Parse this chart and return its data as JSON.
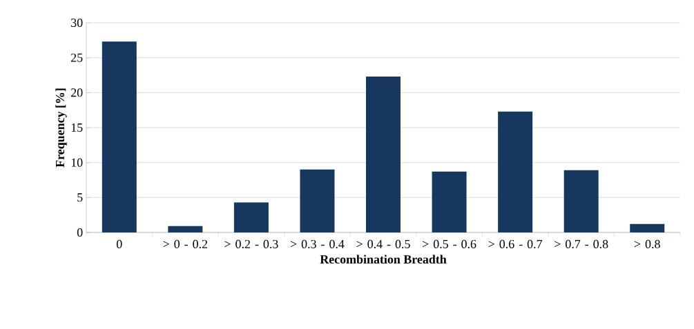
{
  "chart_data": {
    "type": "bar",
    "xlabel": "Recombination Breadth",
    "ylabel": "Frequency [%]",
    "categories": [
      "0",
      "> 0 - 0.2",
      "> 0.2 - 0.3",
      "> 0.3 - 0.4",
      "> 0.4 - 0.5",
      "> 0.5 - 0.6",
      "> 0.6 - 0.7",
      "> 0.7 - 0.8",
      "> 0.8"
    ],
    "values": [
      27.3,
      0.9,
      4.3,
      9.0,
      22.3,
      8.7,
      17.3,
      8.9,
      1.2
    ],
    "color": "#17375e",
    "ylim": [
      0,
      30
    ],
    "yticks": [
      0,
      5,
      10,
      15,
      20,
      25,
      30
    ],
    "grid": "y"
  }
}
